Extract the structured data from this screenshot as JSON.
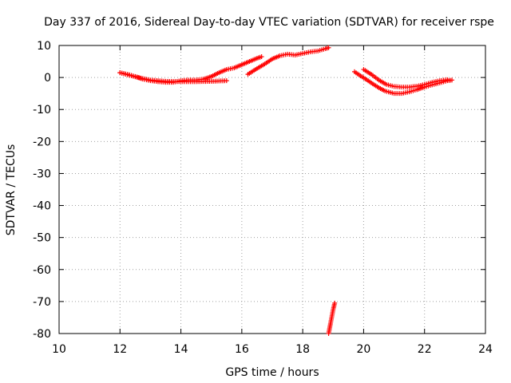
{
  "chart_data": {
    "type": "scatter",
    "title": "Day 337 of 2016, Sidereal Day-to-day VTEC variation (SDTVAR) for receiver rspe",
    "xlabel": "GPS time / hours",
    "ylabel": "SDTVAR / TECUs",
    "xlim": [
      10,
      24
    ],
    "ylim": [
      -80,
      10
    ],
    "xticks": [
      "10",
      "12",
      "14",
      "16",
      "18",
      "20",
      "22",
      "24"
    ],
    "yticks": [
      "10",
      "0",
      "-10",
      "-20",
      "-30",
      "-40",
      "-50",
      "-60",
      "-70",
      "-80"
    ],
    "grid": true,
    "marker": "plus",
    "color": "#ff0000",
    "series": [
      {
        "x": [
          12.0,
          12.25,
          12.5,
          12.75,
          13.0,
          13.25,
          13.5,
          13.75,
          14.0,
          14.25,
          14.5,
          14.75,
          15.0,
          15.25,
          15.5,
          15.75,
          16.0,
          16.25,
          16.5,
          16.65
        ],
        "y": [
          1.5,
          1.0,
          0.3,
          -0.5,
          -1.0,
          -1.3,
          -1.5,
          -1.5,
          -1.0,
          -0.8,
          -0.8,
          -0.5,
          0.3,
          1.5,
          2.5,
          3.0,
          4.0,
          5.0,
          6.0,
          6.5
        ]
      },
      {
        "x": [
          12.0,
          12.5,
          13.0,
          13.5,
          14.0,
          14.5,
          15.0,
          15.5
        ],
        "y": [
          1.5,
          0.2,
          -0.8,
          -1.2,
          -1.3,
          -1.3,
          -1.2,
          -1.0
        ]
      },
      {
        "x": [
          16.2,
          16.5,
          16.8,
          17.0,
          17.25,
          17.5,
          17.75,
          18.0,
          18.25,
          18.5,
          18.75,
          18.85
        ],
        "y": [
          1.0,
          2.8,
          4.5,
          5.8,
          6.8,
          7.3,
          7.0,
          7.5,
          8.0,
          8.3,
          9.0,
          9.3
        ]
      },
      {
        "x": [
          19.7,
          19.9,
          20.1,
          20.3,
          20.5,
          20.7,
          21.0,
          21.25,
          21.5,
          21.75,
          22.0,
          22.25,
          22.5,
          22.75,
          22.9
        ],
        "y": [
          1.8,
          0.5,
          -0.7,
          -2.0,
          -3.2,
          -4.2,
          -5.0,
          -5.0,
          -4.5,
          -3.8,
          -3.0,
          -2.3,
          -1.7,
          -1.0,
          -0.8
        ]
      },
      {
        "x": [
          20.0,
          20.25,
          20.5,
          20.75,
          21.0,
          21.25,
          21.5,
          21.75,
          22.0,
          22.25,
          22.5,
          22.75
        ],
        "y": [
          2.5,
          1.0,
          -0.8,
          -2.2,
          -2.8,
          -3.0,
          -3.0,
          -2.7,
          -2.2,
          -1.5,
          -1.0,
          -0.7
        ]
      },
      {
        "x": [
          18.85,
          18.9,
          18.95,
          19.0,
          19.05
        ],
        "y": [
          -80.0,
          -77.5,
          -75.0,
          -72.5,
          -70.5
        ]
      }
    ]
  }
}
